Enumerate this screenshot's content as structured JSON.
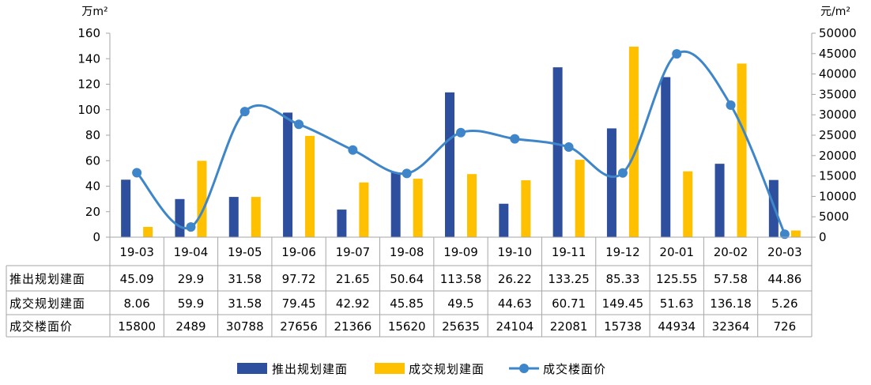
{
  "chart_data": {
    "type": "bar",
    "categories": [
      "19-03",
      "19-04",
      "19-05",
      "19-06",
      "19-07",
      "19-08",
      "19-09",
      "19-10",
      "19-11",
      "19-12",
      "20-01",
      "20-02",
      "20-03"
    ],
    "y_left_unit": "万m²",
    "y_right_unit": "元/m²",
    "y_left_ticks": [
      "0",
      "20",
      "40",
      "60",
      "80",
      "100",
      "120",
      "140",
      "160"
    ],
    "y_right_ticks": [
      "0",
      "5000",
      "10000",
      "15000",
      "20000",
      "25000",
      "30000",
      "35000",
      "40000",
      "45000",
      "50000"
    ],
    "ylim_left": [
      0,
      160
    ],
    "ylim_right": [
      0,
      50000
    ],
    "grid": false,
    "legend_position": "bottom",
    "series": [
      {
        "name": "推出规划建面",
        "type": "bar",
        "axis": "left",
        "color": "#2E4E9E",
        "values": [
          45.09,
          29.9,
          31.58,
          97.72,
          21.65,
          50.64,
          113.58,
          26.22,
          133.25,
          85.33,
          125.55,
          57.58,
          44.86
        ],
        "labels": [
          "45.09",
          "29.9",
          "31.58",
          "97.72",
          "21.65",
          "50.64",
          "113.58",
          "26.22",
          "133.25",
          "85.33",
          "125.55",
          "57.58",
          "44.86"
        ]
      },
      {
        "name": "成交规划建面",
        "type": "bar",
        "axis": "left",
        "color": "#FFC000",
        "values": [
          8.06,
          59.9,
          31.58,
          79.45,
          42.92,
          45.85,
          49.5,
          44.63,
          60.71,
          149.45,
          51.63,
          136.18,
          5.26
        ],
        "labels": [
          "8.06",
          "59.9",
          "31.58",
          "79.45",
          "42.92",
          "45.85",
          "49.5",
          "44.63",
          "60.71",
          "149.45",
          "51.63",
          "136.18",
          "5.26"
        ]
      },
      {
        "name": "成交楼面价",
        "type": "line",
        "axis": "right",
        "color": "#3E86C9",
        "values": [
          15800,
          2489,
          30788,
          27656,
          21366,
          15620,
          25635,
          24104,
          22081,
          15738,
          44934,
          32364,
          726
        ],
        "labels": [
          "15800",
          "2489",
          "30788",
          "27656",
          "21366",
          "15620",
          "25635",
          "24104",
          "22081",
          "15738",
          "44934",
          "32364",
          "726"
        ]
      }
    ]
  }
}
